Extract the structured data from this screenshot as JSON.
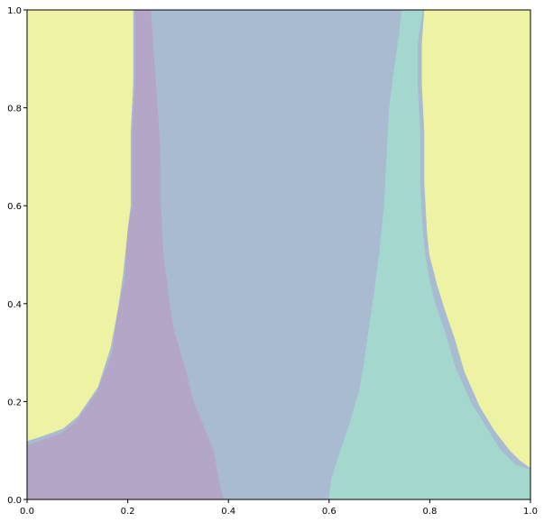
{
  "chart_data": {
    "type": "contourf",
    "title": "",
    "xlabel": "",
    "ylabel": "",
    "xlim": [
      0,
      1
    ],
    "ylim": [
      0,
      1
    ],
    "grid": false,
    "legend": "none",
    "xticks": [
      0.0,
      0.2,
      0.4,
      0.6,
      0.8,
      1.0
    ],
    "yticks": [
      0.0,
      0.2,
      0.4,
      0.6,
      0.8,
      1.0
    ],
    "xtick_labels": [
      "0.0",
      "0.2",
      "0.4",
      "0.6",
      "0.8",
      "1.0"
    ],
    "ytick_labels": [
      "0.0",
      "0.2",
      "0.4",
      "0.6",
      "0.8",
      "1.0"
    ],
    "regions": [
      {
        "color": "#a9bbd1",
        "polygon": [
          [
            0,
            0
          ],
          [
            1,
            0
          ],
          [
            1,
            1
          ],
          [
            0,
            1
          ]
        ]
      },
      {
        "color": "#b3a6c7",
        "polygon": [
          [
            0,
            0
          ],
          [
            0.39,
            0
          ],
          [
            0.38,
            0.04
          ],
          [
            0.37,
            0.1
          ],
          [
            0.35,
            0.15
          ],
          [
            0.33,
            0.2
          ],
          [
            0.31,
            0.28
          ],
          [
            0.29,
            0.35
          ],
          [
            0.28,
            0.42
          ],
          [
            0.27,
            0.5
          ],
          [
            0.265,
            0.6
          ],
          [
            0.265,
            0.68
          ],
          [
            0.26,
            0.78
          ],
          [
            0.255,
            0.85
          ],
          [
            0.25,
            0.93
          ],
          [
            0.245,
            1.0
          ],
          [
            0.215,
            1.0
          ],
          [
            0.215,
            0.85
          ],
          [
            0.21,
            0.75
          ],
          [
            0.21,
            0.6
          ],
          [
            0.2,
            0.55
          ],
          [
            0.195,
            0.45
          ],
          [
            0.18,
            0.38
          ],
          [
            0.17,
            0.3
          ],
          [
            0.14,
            0.22
          ],
          [
            0.1,
            0.16
          ],
          [
            0.07,
            0.135
          ],
          [
            0.03,
            0.12
          ],
          [
            0,
            0.11
          ]
        ]
      },
      {
        "color": "#a4d8cf",
        "polygon": [
          [
            0.6,
            0
          ],
          [
            1,
            0
          ],
          [
            1,
            0.06
          ],
          [
            0.97,
            0.07
          ],
          [
            0.94,
            0.1
          ],
          [
            0.91,
            0.15
          ],
          [
            0.88,
            0.2
          ],
          [
            0.85,
            0.27
          ],
          [
            0.83,
            0.34
          ],
          [
            0.81,
            0.4
          ],
          [
            0.8,
            0.44
          ],
          [
            0.79,
            0.5
          ],
          [
            0.785,
            0.55
          ],
          [
            0.78,
            0.65
          ],
          [
            0.78,
            0.75
          ],
          [
            0.775,
            0.85
          ],
          [
            0.775,
            0.93
          ],
          [
            0.785,
            1.0
          ],
          [
            0.745,
            1.0
          ],
          [
            0.74,
            0.95
          ],
          [
            0.73,
            0.88
          ],
          [
            0.72,
            0.8
          ],
          [
            0.715,
            0.7
          ],
          [
            0.71,
            0.6
          ],
          [
            0.705,
            0.55
          ],
          [
            0.7,
            0.5
          ],
          [
            0.69,
            0.42
          ],
          [
            0.68,
            0.35
          ],
          [
            0.67,
            0.28
          ],
          [
            0.66,
            0.22
          ],
          [
            0.64,
            0.15
          ],
          [
            0.62,
            0.09
          ],
          [
            0.605,
            0.04
          ]
        ]
      },
      {
        "color": "#eef3a4",
        "polygon": [
          [
            0,
            0.12
          ],
          [
            0.03,
            0.13
          ],
          [
            0.07,
            0.145
          ],
          [
            0.1,
            0.17
          ],
          [
            0.14,
            0.23
          ],
          [
            0.165,
            0.31
          ],
          [
            0.18,
            0.39
          ],
          [
            0.19,
            0.46
          ],
          [
            0.2,
            0.56
          ],
          [
            0.205,
            0.6
          ],
          [
            0.205,
            0.75
          ],
          [
            0.21,
            0.85
          ],
          [
            0.21,
            1.0
          ],
          [
            0,
            1.0
          ]
        ]
      },
      {
        "color": "#eef3a4",
        "polygon": [
          [
            0.79,
            1.0
          ],
          [
            0.785,
            0.93
          ],
          [
            0.785,
            0.85
          ],
          [
            0.79,
            0.75
          ],
          [
            0.79,
            0.65
          ],
          [
            0.795,
            0.55
          ],
          [
            0.8,
            0.5
          ],
          [
            0.815,
            0.44
          ],
          [
            0.83,
            0.39
          ],
          [
            0.85,
            0.33
          ],
          [
            0.87,
            0.26
          ],
          [
            0.9,
            0.19
          ],
          [
            0.93,
            0.14
          ],
          [
            0.96,
            0.1
          ],
          [
            0.98,
            0.08
          ],
          [
            1.0,
            0.065
          ],
          [
            1.0,
            1.0
          ]
        ]
      }
    ]
  }
}
